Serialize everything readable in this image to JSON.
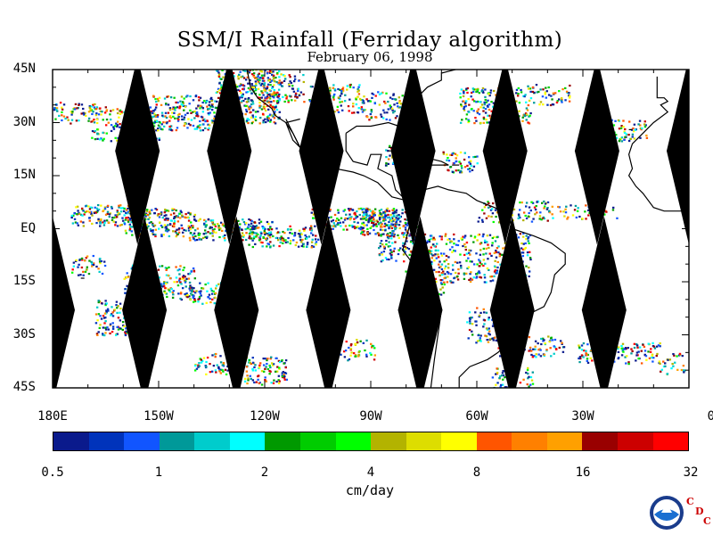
{
  "title": "SSM/I Rainfall (Ferriday algorithm)",
  "subtitle": "February 06, 1998",
  "y_axis_labels": [
    "45N",
    "30N",
    "15N",
    "EQ",
    "15S",
    "30S",
    "45S"
  ],
  "x_axis_labels": [
    "180E",
    "150W",
    "120W",
    "90W",
    "60W",
    "30W",
    "0"
  ],
  "colorbar": {
    "colors": [
      "#0a1a8c",
      "#0033bb",
      "#1155ff",
      "#009999",
      "#00cccc",
      "#00ffff",
      "#009900",
      "#00cc00",
      "#00ff00",
      "#b3b300",
      "#dddd00",
      "#ffff00",
      "#ff5500",
      "#ff8000",
      "#ffa000",
      "#990000",
      "#cc0000",
      "#ff0000"
    ],
    "labels": [
      "0.5",
      "1",
      "2",
      "4",
      "8",
      "16",
      "32"
    ],
    "units": "cm/day"
  },
  "logo": {
    "icon": "noaa-logo",
    "letters": [
      "C",
      "D",
      "C"
    ]
  },
  "map": {
    "lon_range": [
      -180,
      0
    ],
    "lat_range": [
      -45,
      45
    ],
    "swath_gap_centers_lon": [
      -180,
      -154,
      -128,
      -102,
      -76,
      -50,
      -24
    ],
    "swath_gap_half_width_lon": 9,
    "swath_gap_lat_extent": 53,
    "north_row_offset_lon": 0,
    "south_row_offset_lon": 0
  }
}
